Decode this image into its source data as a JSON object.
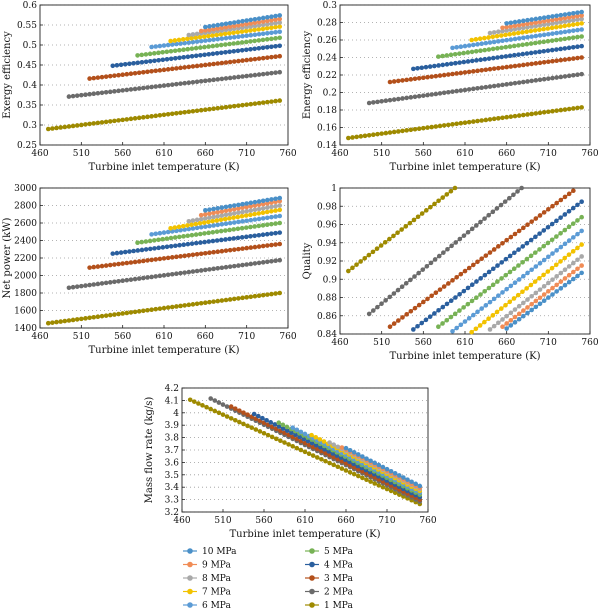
{
  "legend": [
    {
      "name": "10 MPa",
      "color": "#4a90c8"
    },
    {
      "name": "9 MPa",
      "color": "#f08c56"
    },
    {
      "name": "8 MPa",
      "color": "#a9a9a9"
    },
    {
      "name": "7 MPa",
      "color": "#f2c200"
    },
    {
      "name": "6 MPa",
      "color": "#5b9bd5"
    },
    {
      "name": "5 MPa",
      "color": "#77b255"
    },
    {
      "name": "4 MPa",
      "color": "#2a5f9e"
    },
    {
      "name": "3 MPa",
      "color": "#b3501b"
    },
    {
      "name": "2 MPa",
      "color": "#6b6b6b"
    },
    {
      "name": "1 MPa",
      "color": "#9e8a00"
    }
  ],
  "chart_data": [
    {
      "type": "scatter",
      "ylabel": "Exergy efficiency",
      "xlabel": "Turbine inlet temperature (K)",
      "xlim": [
        460,
        760
      ],
      "ylim": [
        0.25,
        0.6
      ],
      "xticks": [
        "460",
        "510",
        "560",
        "610",
        "660",
        "710",
        "760"
      ],
      "yticks": [
        "0.25",
        "0.3",
        "0.35",
        "0.4",
        "0.45",
        "0.5",
        "0.55",
        "0.6"
      ],
      "series": [
        {
          "name": "10 MPa",
          "x_start": 660,
          "x_end": 750,
          "y_start": 0.545,
          "y_end": 0.574
        },
        {
          "name": "9 MPa",
          "x_start": 655,
          "x_end": 750,
          "y_start": 0.535,
          "y_end": 0.565
        },
        {
          "name": "8 MPa",
          "x_start": 640,
          "x_end": 750,
          "y_start": 0.525,
          "y_end": 0.556
        },
        {
          "name": "7 MPa",
          "x_start": 618,
          "x_end": 750,
          "y_start": 0.51,
          "y_end": 0.546
        },
        {
          "name": "6 MPa",
          "x_start": 595,
          "x_end": 750,
          "y_start": 0.495,
          "y_end": 0.533
        },
        {
          "name": "5 MPa",
          "x_start": 578,
          "x_end": 750,
          "y_start": 0.474,
          "y_end": 0.518
        },
        {
          "name": "4 MPa",
          "x_start": 548,
          "x_end": 750,
          "y_start": 0.448,
          "y_end": 0.498
        },
        {
          "name": "3 MPa",
          "x_start": 520,
          "x_end": 750,
          "y_start": 0.416,
          "y_end": 0.472
        },
        {
          "name": "2 MPa",
          "x_start": 495,
          "x_end": 750,
          "y_start": 0.371,
          "y_end": 0.432
        },
        {
          "name": "1 MPa",
          "x_start": 470,
          "x_end": 750,
          "y_start": 0.29,
          "y_end": 0.361
        }
      ]
    },
    {
      "type": "scatter",
      "ylabel": "Energy efficiency",
      "xlabel": "Turbine inlet temperature (K)",
      "xlim": [
        460,
        760
      ],
      "ylim": [
        0.14,
        0.3
      ],
      "xticks": [
        "460",
        "510",
        "560",
        "610",
        "660",
        "710",
        "760"
      ],
      "yticks": [
        "0.14",
        "0.16",
        "0.18",
        "0.2",
        "0.22",
        "0.24",
        "0.26",
        "0.28",
        "0.3"
      ],
      "series": [
        {
          "name": "10 MPa",
          "x_start": 660,
          "x_end": 750,
          "y_start": 0.279,
          "y_end": 0.292
        },
        {
          "name": "9 MPa",
          "x_start": 655,
          "x_end": 750,
          "y_start": 0.274,
          "y_end": 0.288
        },
        {
          "name": "8 MPa",
          "x_start": 640,
          "x_end": 750,
          "y_start": 0.268,
          "y_end": 0.284
        },
        {
          "name": "7 MPa",
          "x_start": 618,
          "x_end": 750,
          "y_start": 0.26,
          "y_end": 0.279
        },
        {
          "name": "6 MPa",
          "x_start": 595,
          "x_end": 750,
          "y_start": 0.251,
          "y_end": 0.272
        },
        {
          "name": "5 MPa",
          "x_start": 578,
          "x_end": 750,
          "y_start": 0.241,
          "y_end": 0.264
        },
        {
          "name": "4 MPa",
          "x_start": 548,
          "x_end": 750,
          "y_start": 0.227,
          "y_end": 0.253
        },
        {
          "name": "3 MPa",
          "x_start": 520,
          "x_end": 750,
          "y_start": 0.212,
          "y_end": 0.24
        },
        {
          "name": "2 MPa",
          "x_start": 495,
          "x_end": 750,
          "y_start": 0.188,
          "y_end": 0.221
        },
        {
          "name": "1 MPa",
          "x_start": 470,
          "x_end": 750,
          "y_start": 0.148,
          "y_end": 0.183
        }
      ]
    },
    {
      "type": "scatter",
      "ylabel": "Net power (kW)",
      "xlabel": "Turbine inlet temperature (K)",
      "xlim": [
        460,
        760
      ],
      "ylim": [
        1400,
        3000
      ],
      "xticks": [
        "460",
        "510",
        "560",
        "610",
        "660",
        "710",
        "760"
      ],
      "yticks": [
        "1400",
        "1600",
        "1800",
        "2000",
        "2200",
        "2400",
        "2600",
        "2800",
        "3000"
      ],
      "series": [
        {
          "name": "10 MPa",
          "x_start": 660,
          "x_end": 750,
          "y_start": 2745,
          "y_end": 2885
        },
        {
          "name": "9 MPa",
          "x_start": 655,
          "x_end": 750,
          "y_start": 2690,
          "y_end": 2850
        },
        {
          "name": "8 MPa",
          "x_start": 640,
          "x_end": 750,
          "y_start": 2620,
          "y_end": 2800
        },
        {
          "name": "7 MPa",
          "x_start": 618,
          "x_end": 750,
          "y_start": 2540,
          "y_end": 2750
        },
        {
          "name": "6 MPa",
          "x_start": 595,
          "x_end": 750,
          "y_start": 2470,
          "y_end": 2680
        },
        {
          "name": "5 MPa",
          "x_start": 578,
          "x_end": 750,
          "y_start": 2375,
          "y_end": 2600
        },
        {
          "name": "4 MPa",
          "x_start": 548,
          "x_end": 750,
          "y_start": 2250,
          "y_end": 2490
        },
        {
          "name": "3 MPa",
          "x_start": 520,
          "x_end": 750,
          "y_start": 2090,
          "y_end": 2360
        },
        {
          "name": "2 MPa",
          "x_start": 495,
          "x_end": 750,
          "y_start": 1860,
          "y_end": 2175
        },
        {
          "name": "1 MPa",
          "x_start": 470,
          "x_end": 750,
          "y_start": 1455,
          "y_end": 1800
        }
      ]
    },
    {
      "type": "scatter",
      "ylabel": "Quality",
      "xlabel": "Turbine inlet temperature (K)",
      "xlim": [
        460,
        760
      ],
      "ylim": [
        0.84,
        1.0
      ],
      "xticks": [
        "460",
        "510",
        "560",
        "610",
        "660",
        "710",
        "760"
      ],
      "yticks": [
        "0.84",
        "0.86",
        "0.88",
        "0.9",
        "0.92",
        "0.94",
        "0.96",
        "0.98",
        "1"
      ],
      "series": [
        {
          "name": "10 MPa",
          "x_start": 660,
          "x_end": 750,
          "y_start": 0.846,
          "y_end": 0.907
        },
        {
          "name": "9 MPa",
          "x_start": 655,
          "x_end": 750,
          "y_start": 0.848,
          "y_end": 0.915
        },
        {
          "name": "8 MPa",
          "x_start": 640,
          "x_end": 750,
          "y_start": 0.845,
          "y_end": 0.925
        },
        {
          "name": "7 MPa",
          "x_start": 618,
          "x_end": 750,
          "y_start": 0.842,
          "y_end": 0.938
        },
        {
          "name": "6 MPa",
          "x_start": 595,
          "x_end": 750,
          "y_start": 0.843,
          "y_end": 0.953
        },
        {
          "name": "5 MPa",
          "x_start": 578,
          "x_end": 750,
          "y_start": 0.848,
          "y_end": 0.968
        },
        {
          "name": "4 MPa",
          "x_start": 548,
          "x_end": 750,
          "y_start": 0.845,
          "y_end": 0.985
        },
        {
          "name": "3 MPa",
          "x_start": 520,
          "x_end": 740,
          "y_start": 0.848,
          "y_end": 0.997
        },
        {
          "name": "2 MPa",
          "x_start": 495,
          "x_end": 678,
          "y_start": 0.862,
          "y_end": 1.0
        },
        {
          "name": "1 MPa",
          "x_start": 470,
          "x_end": 598,
          "y_start": 0.909,
          "y_end": 1.0
        }
      ]
    },
    {
      "type": "scatter",
      "ylabel": "Mass flow rate (kg/s)",
      "xlabel": "Turbine inlet temperature (K)",
      "xlim": [
        460,
        760
      ],
      "ylim": [
        3.2,
        4.2
      ],
      "xticks": [
        "460",
        "510",
        "560",
        "610",
        "660",
        "710",
        "760"
      ],
      "yticks": [
        "3.2",
        "3.3",
        "3.4",
        "3.5",
        "3.6",
        "3.7",
        "3.8",
        "3.9",
        "4",
        "4.1",
        "4.2"
      ],
      "series": [
        {
          "name": "10 MPa",
          "x_start": 660,
          "x_end": 750,
          "y_start": 3.715,
          "y_end": 3.41
        },
        {
          "name": "9 MPa",
          "x_start": 655,
          "x_end": 750,
          "y_start": 3.72,
          "y_end": 3.395
        },
        {
          "name": "8 MPa",
          "x_start": 640,
          "x_end": 750,
          "y_start": 3.76,
          "y_end": 3.385
        },
        {
          "name": "7 MPa",
          "x_start": 618,
          "x_end": 750,
          "y_start": 3.82,
          "y_end": 3.37
        },
        {
          "name": "6 MPa",
          "x_start": 595,
          "x_end": 750,
          "y_start": 3.88,
          "y_end": 3.355
        },
        {
          "name": "5 MPa",
          "x_start": 578,
          "x_end": 750,
          "y_start": 3.92,
          "y_end": 3.34
        },
        {
          "name": "4 MPa",
          "x_start": 548,
          "x_end": 750,
          "y_start": 3.99,
          "y_end": 3.32
        },
        {
          "name": "3 MPa",
          "x_start": 520,
          "x_end": 750,
          "y_start": 4.05,
          "y_end": 3.3
        },
        {
          "name": "2 MPa",
          "x_start": 495,
          "x_end": 750,
          "y_start": 4.115,
          "y_end": 3.285
        },
        {
          "name": "1 MPa",
          "x_start": 470,
          "x_end": 750,
          "y_start": 4.105,
          "y_end": 3.265
        }
      ]
    }
  ]
}
